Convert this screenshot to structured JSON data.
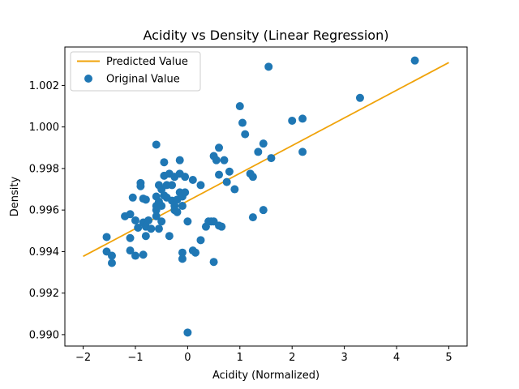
{
  "chart_data": {
    "type": "scatter",
    "title": "Acidity vs Density (Linear Regression)",
    "xlabel": "Acidity (Normalized)",
    "ylabel": "Density",
    "xlim": [
      -2.35,
      5.35
    ],
    "ylim": [
      0.98945,
      1.00385
    ],
    "xticks": [
      -2,
      -1,
      0,
      1,
      2,
      3,
      4,
      5
    ],
    "xtick_labels": [
      "−2",
      "−1",
      "0",
      "1",
      "2",
      "3",
      "4",
      "5"
    ],
    "yticks": [
      0.99,
      0.992,
      0.994,
      0.996,
      0.998,
      1.0,
      1.002
    ],
    "ytick_labels": [
      "0.990",
      "0.992",
      "0.994",
      "0.996",
      "0.998",
      "1.000",
      "1.002"
    ],
    "grid": false,
    "legend": {
      "placement": "top-left",
      "entries": [
        {
          "label": "Predicted Value",
          "kind": "line",
          "color": "#f0a30a"
        },
        {
          "label": "Original Value",
          "kind": "marker",
          "color": "#1f77b4"
        }
      ]
    },
    "series": [
      {
        "name": "Predicted Value",
        "kind": "line",
        "color": "#f0a30a",
        "points": [
          [
            -2.0,
            0.99377
          ],
          [
            5.0,
            1.0031
          ]
        ]
      },
      {
        "name": "Original Value",
        "kind": "scatter",
        "color": "#1f77b4",
        "points": [
          [
            -1.55,
            0.9947
          ],
          [
            -1.55,
            0.994
          ],
          [
            -1.45,
            0.9938
          ],
          [
            -1.45,
            0.99345
          ],
          [
            -1.2,
            0.9957
          ],
          [
            -1.1,
            0.9958
          ],
          [
            -1.1,
            0.99465
          ],
          [
            -1.1,
            0.99405
          ],
          [
            -1.05,
            0.9966
          ],
          [
            -1.0,
            0.9955
          ],
          [
            -1.0,
            0.9938
          ],
          [
            -0.95,
            0.99515
          ],
          [
            -0.9,
            0.9973
          ],
          [
            -0.9,
            0.99715
          ],
          [
            -0.85,
            0.99655
          ],
          [
            -0.85,
            0.9954
          ],
          [
            -0.85,
            0.99385
          ],
          [
            -0.8,
            0.9965
          ],
          [
            -0.8,
            0.9952
          ],
          [
            -0.8,
            0.99475
          ],
          [
            -0.75,
            0.9955
          ],
          [
            -0.7,
            0.9951
          ],
          [
            -0.6,
            0.99915
          ],
          [
            -0.6,
            0.99665
          ],
          [
            -0.6,
            0.9962
          ],
          [
            -0.6,
            0.996
          ],
          [
            -0.6,
            0.9957
          ],
          [
            -0.55,
            0.9972
          ],
          [
            -0.55,
            0.9964
          ],
          [
            -0.55,
            0.9951
          ],
          [
            -0.5,
            0.997
          ],
          [
            -0.5,
            0.9962
          ],
          [
            -0.5,
            0.99545
          ],
          [
            -0.45,
            0.9983
          ],
          [
            -0.45,
            0.99765
          ],
          [
            -0.45,
            0.9967
          ],
          [
            -0.4,
            0.9972
          ],
          [
            -0.4,
            0.9966
          ],
          [
            -0.35,
            0.99775
          ],
          [
            -0.35,
            0.99475
          ],
          [
            -0.3,
            0.9972
          ],
          [
            -0.3,
            0.99645
          ],
          [
            -0.25,
            0.9976
          ],
          [
            -0.25,
            0.9962
          ],
          [
            -0.25,
            0.996
          ],
          [
            -0.2,
            0.9965
          ],
          [
            -0.2,
            0.9959
          ],
          [
            -0.15,
            0.9984
          ],
          [
            -0.15,
            0.99775
          ],
          [
            -0.15,
            0.99685
          ],
          [
            -0.1,
            0.99665
          ],
          [
            -0.1,
            0.9962
          ],
          [
            -0.1,
            0.99395
          ],
          [
            -0.1,
            0.99365
          ],
          [
            -0.05,
            0.9976
          ],
          [
            -0.05,
            0.99685
          ],
          [
            0.0,
            0.99545
          ],
          [
            0.0,
            0.9901
          ],
          [
            0.1,
            0.99745
          ],
          [
            0.1,
            0.99405
          ],
          [
            0.15,
            0.99395
          ],
          [
            0.25,
            0.9972
          ],
          [
            0.25,
            0.99455
          ],
          [
            0.35,
            0.9952
          ],
          [
            0.4,
            0.99545
          ],
          [
            0.45,
            0.99545
          ],
          [
            0.5,
            0.9986
          ],
          [
            0.5,
            0.99545
          ],
          [
            0.5,
            0.9935
          ],
          [
            0.55,
            0.9984
          ],
          [
            0.6,
            0.999
          ],
          [
            0.6,
            0.9977
          ],
          [
            0.6,
            0.99525
          ],
          [
            0.65,
            0.9952
          ],
          [
            0.7,
            0.9984
          ],
          [
            0.75,
            0.99735
          ],
          [
            0.8,
            0.99785
          ],
          [
            0.9,
            0.997
          ],
          [
            1.0,
            1.001
          ],
          [
            1.05,
            1.0002
          ],
          [
            1.1,
            0.99965
          ],
          [
            1.2,
            0.99775
          ],
          [
            1.25,
            0.9976
          ],
          [
            1.25,
            0.99565
          ],
          [
            1.35,
            0.9988
          ],
          [
            1.45,
            0.9992
          ],
          [
            1.45,
            0.996
          ],
          [
            1.55,
            1.0029
          ],
          [
            1.6,
            0.9985
          ],
          [
            2.0,
            1.0003
          ],
          [
            2.2,
            1.0004
          ],
          [
            2.2,
            0.9988
          ],
          [
            3.3,
            1.0014
          ],
          [
            4.35,
            1.0032
          ]
        ]
      }
    ]
  }
}
